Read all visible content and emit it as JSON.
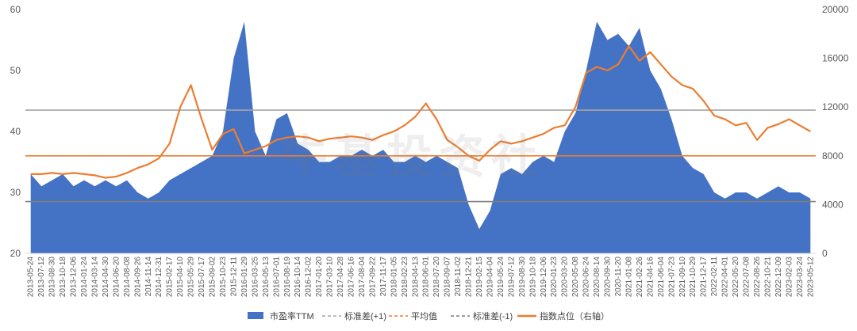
{
  "watermark": "牛基投资社",
  "chart_data": {
    "type": "area",
    "x_labels": [
      "2013-05-24",
      "2013-07-12",
      "2013-08-30",
      "2013-10-18",
      "2013-12-06",
      "2014-01-24",
      "2014-03-14",
      "2014-04-30",
      "2014-06-20",
      "2014-08-08",
      "2014-09-26",
      "2014-11-14",
      "2014-12-31",
      "2015-02-17",
      "2015-04-10",
      "2015-05-29",
      "2015-07-17",
      "2015-09-02",
      "2015-10-23",
      "2015-12-11",
      "2016-01-29",
      "2016-03-25",
      "2016-05-13",
      "2016-07-01",
      "2016-08-19",
      "2016-10-14",
      "2016-12-02",
      "2017-01-20",
      "2017-03-10",
      "2017-04-28",
      "2017-06-16",
      "2017-08-04",
      "2017-09-22",
      "2017-11-17",
      "2018-01-05",
      "2018-02-23",
      "2018-04-13",
      "2018-06-01",
      "2018-07-20",
      "2018-09-07",
      "2018-11-02",
      "2018-12-21",
      "2019-02-15",
      "2019-04-04",
      "2019-05-24",
      "2019-07-12",
      "2019-08-30",
      "2019-10-18",
      "2019-12-06",
      "2020-01-23",
      "2020-03-20",
      "2020-05-08",
      "2020-06-24",
      "2020-08-14",
      "2020-09-30",
      "2020-11-20",
      "2021-01-08",
      "2021-02-26",
      "2021-04-16",
      "2021-06-04",
      "2021-07-23",
      "2021-09-10",
      "2021-10-29",
      "2021-12-17",
      "2022-02-11",
      "2022-04-01",
      "2022-05-20",
      "2022-07-08",
      "2022-08-26",
      "2022-10-21",
      "2022-12-09",
      "2023-02-03",
      "2023-03-24",
      "2023-05-12"
    ],
    "y_left": {
      "min": 20,
      "max": 60,
      "ticks": [
        20,
        30,
        40,
        50,
        60
      ]
    },
    "y_right": {
      "min": 0,
      "max": 20000,
      "ticks": [
        0,
        4000,
        8000,
        12000,
        16000,
        20000
      ]
    },
    "reference_lines": {
      "std_plus1": 43.5,
      "mean": 36.0,
      "std_minus1": 28.5
    },
    "series": [
      {
        "name": "市盈率TTM",
        "axis": "left",
        "color": "#4472c4",
        "values": [
          33,
          31,
          32,
          33,
          31,
          32,
          31,
          32,
          31,
          32,
          30,
          29,
          30,
          32,
          33,
          34,
          35,
          36,
          40,
          52,
          58,
          40,
          36,
          42,
          43,
          38,
          37,
          35,
          35,
          36,
          36,
          37,
          36,
          37,
          35,
          35,
          36,
          35,
          36,
          35,
          34,
          28,
          24,
          27,
          33,
          34,
          33,
          35,
          36,
          35,
          40,
          43,
          50,
          58,
          55,
          56,
          54,
          57,
          50,
          47,
          42,
          36,
          34,
          33,
          30,
          29,
          30,
          30,
          29,
          30,
          31,
          30,
          30,
          29
        ]
      },
      {
        "name": "指数点位（右轴）",
        "axis": "right",
        "color": "#ed7d31",
        "values": [
          6500,
          6500,
          6600,
          6500,
          6600,
          6500,
          6400,
          6200,
          6300,
          6600,
          7000,
          7300,
          7800,
          9000,
          12000,
          13800,
          11000,
          8500,
          9800,
          10200,
          8200,
          8500,
          8800,
          9300,
          9500,
          9600,
          9500,
          9200,
          9400,
          9500,
          9600,
          9500,
          9300,
          9700,
          10000,
          10500,
          11200,
          12300,
          11000,
          9300,
          8700,
          8000,
          7600,
          8500,
          9200,
          9000,
          9200,
          9500,
          9800,
          10300,
          10500,
          12000,
          14800,
          15300,
          15000,
          15500,
          17000,
          15800,
          16500,
          15500,
          14500,
          13800,
          13500,
          12500,
          11300,
          11000,
          10500,
          10700,
          9300,
          10300,
          10600,
          11000,
          10500,
          10000
        ]
      }
    ],
    "legend": {
      "position": "bottom",
      "items": [
        {
          "label": "市盈率TTM",
          "color": "#4472c4",
          "style": "area"
        },
        {
          "label": "标准差(+1)",
          "color": "#a5a5a5",
          "style": "dash"
        },
        {
          "label": "平均值",
          "color": "#ed7d31",
          "style": "dash"
        },
        {
          "label": "标准差(-1)",
          "color": "#7f7f7f",
          "style": "dash"
        },
        {
          "label": "指数点位（右轴）",
          "color": "#ed7d31",
          "style": "line"
        }
      ]
    },
    "reference_colors": {
      "std_plus1": "#a5a5a5",
      "mean": "#ed7d31",
      "std_minus1": "#7f7f7f"
    }
  }
}
